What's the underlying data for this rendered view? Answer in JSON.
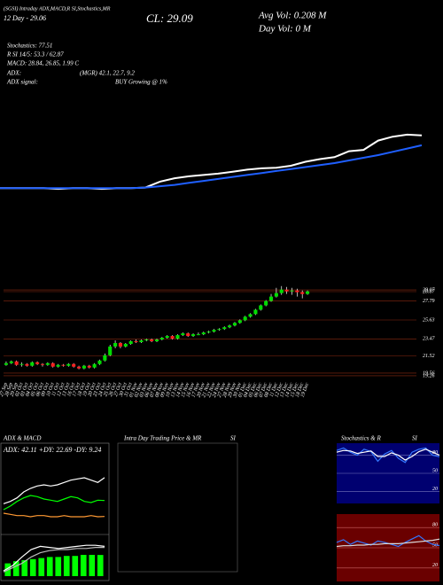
{
  "header": {
    "source": "(SGSI) Intraday ADX,MACD,R SI,Stochastics,MR",
    "day": "12 Day - 29.06",
    "close": "CL: 29.09",
    "avg_vol": "Avg Vol: 0.208  M",
    "day_vol": "Day Vol: 0  M",
    "stochastics": "Stochastics: 77.51",
    "rsi": "R SI 14/5: 53.3 / 62.87",
    "macd": "MACD: 28.84, 26.85, 1.99 C",
    "adx_label": "ADX:",
    "adx_values": "(MGR) 42.1, 22.7, 9.2",
    "adx_signal_label": "ADX  signal:",
    "adx_signal": "BUY Growing @ 1%"
  },
  "panels": {
    "adx_macd": "ADX  & MACD",
    "adx_readout": "ADX: 42.11 +DY: 22.69 -DY: 9.24",
    "intraday": "Intra Day Trading Price  & MR",
    "intraday_si": "SI",
    "stoch_rsi": "Stochastics & R",
    "stoch_rsi_si": "SI"
  },
  "chart_data": [
    {
      "type": "line",
      "ylim": [
        19.5,
        30.5
      ],
      "series": [
        {
          "color": "#ffffff",
          "values": [
            20.8,
            20.8,
            20.8,
            20.8,
            20.7,
            20.8,
            20.8,
            20.7,
            20.8,
            20.8,
            20.9,
            21.8,
            22.3,
            22.6,
            22.8,
            23.0,
            23.3,
            23.6,
            23.8,
            23.9,
            24.2,
            24.8,
            25.2,
            25.5,
            26.4,
            26.6,
            28.0,
            28.6,
            28.9,
            28.8
          ]
        },
        {
          "color": "#1f5fff",
          "values": [
            20.8,
            20.8,
            20.8,
            20.8,
            20.8,
            20.8,
            20.8,
            20.8,
            20.8,
            20.8,
            20.9,
            21.1,
            21.3,
            21.6,
            21.9,
            22.2,
            22.5,
            22.8,
            23.1,
            23.4,
            23.7,
            24.0,
            24.3,
            24.6,
            25.0,
            25.4,
            25.8,
            26.3,
            26.8,
            27.3
          ]
        }
      ]
    },
    {
      "type": "candlestick",
      "ylim": [
        18.85,
        29.78
      ],
      "yticks": [
        29.07,
        28.87,
        27.79,
        25.63,
        23.47,
        21.52,
        19.56,
        19.26
      ],
      "grid": true,
      "up_color": "#00dd00",
      "down_color": "#ff2020",
      "wick_color": "#ffffff",
      "grid_color": "#8b2a10",
      "categories": [
        "27 Sep",
        "28 Sep",
        "29 Sep",
        "02 Oct",
        "03 Oct",
        "04 Oct",
        "05 Oct",
        "06 Oct",
        "09 Oct",
        "10 Oct",
        "11 Oct",
        "12 Oct",
        "13 Oct",
        "16 Oct",
        "17 Oct",
        "18 Oct",
        "19 Oct",
        "20 Oct",
        "23 Oct",
        "24 Oct",
        "25 Oct",
        "26 Oct",
        "27 Oct",
        "30 Oct",
        "31 Oct",
        "01 Nov",
        "02 Nov",
        "03 Nov",
        "06 Nov",
        "07 Nov",
        "08 Nov",
        "09 Nov",
        "10 Nov",
        "13 Nov",
        "14 Nov",
        "15 Nov",
        "16 Nov",
        "17 Nov",
        "20 Nov",
        "21 Nov",
        "22 Nov",
        "24 Nov",
        "27 Nov",
        "28 Nov",
        "29 Nov",
        "30 Nov",
        "01 Dec",
        "04 Dec",
        "05 Dec",
        "06 Dec",
        "07 Dec",
        "08 Dec",
        "11 Dec",
        "12 Dec",
        "13 Dec",
        "14 Dec",
        "15 Dec",
        "18 Dec",
        "19 Dec"
      ],
      "open": [
        20.5,
        20.7,
        20.9,
        20.5,
        20.6,
        20.4,
        20.8,
        20.6,
        20.5,
        20.7,
        20.3,
        20.5,
        20.4,
        20.6,
        20.3,
        20.1,
        20.4,
        20.2,
        20.6,
        21.0,
        21.6,
        22.6,
        23.0,
        22.6,
        22.9,
        23.2,
        23.1,
        23.3,
        23.4,
        23.2,
        23.4,
        23.6,
        23.8,
        23.5,
        23.9,
        24.1,
        23.8,
        24.0,
        24.0,
        24.2,
        24.3,
        24.5,
        24.6,
        24.8,
        25.0,
        25.3,
        25.6,
        26.0,
        26.3,
        26.8,
        27.3,
        27.8,
        28.3,
        28.7,
        29.1,
        28.9,
        29.0,
        28.8,
        28.6
      ],
      "high": [
        20.9,
        21.0,
        21.0,
        20.8,
        20.7,
        20.9,
        20.9,
        20.7,
        20.8,
        20.8,
        20.6,
        20.6,
        20.7,
        20.7,
        20.4,
        20.5,
        20.5,
        20.7,
        21.1,
        21.8,
        22.8,
        23.3,
        23.1,
        23.0,
        23.3,
        23.4,
        23.4,
        23.5,
        23.5,
        23.5,
        23.7,
        23.9,
        23.9,
        24.0,
        24.2,
        24.2,
        24.1,
        24.2,
        24.3,
        24.4,
        24.6,
        24.7,
        24.9,
        25.1,
        25.4,
        25.7,
        26.1,
        26.4,
        26.9,
        27.4,
        27.9,
        28.6,
        29.3,
        29.5,
        29.4,
        29.3,
        29.2,
        29.0,
        29.0
      ],
      "low": [
        20.4,
        20.6,
        20.4,
        20.3,
        20.3,
        20.3,
        20.5,
        20.3,
        20.4,
        20.2,
        20.2,
        20.3,
        20.3,
        20.2,
        20.0,
        20.0,
        20.1,
        20.1,
        20.5,
        20.9,
        21.5,
        22.4,
        22.4,
        22.5,
        22.8,
        23.0,
        23.0,
        23.2,
        23.1,
        23.1,
        23.3,
        23.5,
        23.4,
        23.4,
        23.8,
        23.7,
        23.7,
        23.9,
        23.9,
        24.1,
        24.2,
        24.4,
        24.5,
        24.7,
        24.9,
        25.2,
        25.5,
        25.9,
        26.2,
        26.7,
        27.2,
        27.7,
        28.2,
        28.5,
        28.6,
        28.5,
        28.3,
        28.1,
        28.5
      ],
      "close": [
        20.7,
        20.9,
        20.5,
        20.6,
        20.4,
        20.8,
        20.6,
        20.5,
        20.7,
        20.3,
        20.5,
        20.4,
        20.6,
        20.3,
        20.1,
        20.4,
        20.2,
        20.6,
        21.0,
        21.6,
        22.6,
        23.0,
        22.6,
        22.9,
        23.2,
        23.1,
        23.3,
        23.4,
        23.2,
        23.4,
        23.6,
        23.8,
        23.5,
        23.9,
        24.1,
        23.8,
        24.0,
        24.0,
        24.2,
        24.3,
        24.5,
        24.6,
        24.8,
        25.0,
        25.3,
        25.6,
        26.0,
        26.3,
        26.8,
        27.3,
        27.8,
        28.3,
        28.7,
        29.1,
        28.9,
        29.0,
        28.8,
        28.6,
        28.9
      ]
    },
    {
      "type": "line",
      "ylim": [
        0,
        60
      ],
      "series": [
        {
          "color": "#ffffff",
          "values": [
            20,
            22,
            25,
            30,
            33,
            35,
            36,
            35,
            36,
            38,
            40,
            41,
            42,
            40,
            38,
            42.11
          ]
        },
        {
          "color": "#00ff00",
          "values": [
            15,
            18,
            22,
            25,
            27,
            26,
            24,
            23,
            22,
            24,
            26,
            25,
            22,
            21,
            23,
            22.69
          ]
        },
        {
          "color": "#ff9933",
          "values": [
            12,
            11,
            10,
            10,
            9,
            10,
            10,
            9,
            9,
            10,
            9,
            9,
            9,
            10,
            9,
            9.24
          ]
        }
      ]
    },
    {
      "type": "bar",
      "ylim": [
        0,
        3.5
      ],
      "color": "#00ff00",
      "values": [
        1.2,
        1.4,
        1.5,
        1.6,
        1.7,
        1.8,
        1.8,
        1.9,
        1.9,
        2.0,
        2.0,
        1.99
      ],
      "series": [
        {
          "color": "#ffffff",
          "values": [
            0.5,
            1.0,
            1.8,
            2.5,
            2.8,
            2.7,
            2.6,
            2.7,
            2.8,
            2.9,
            2.9,
            2.8
          ]
        },
        {
          "color": "#bbbbbb",
          "values": [
            0.4,
            0.8,
            1.2,
            1.8,
            2.2,
            2.4,
            2.5,
            2.5,
            2.6,
            2.6,
            2.7,
            2.7
          ]
        }
      ]
    },
    {
      "type": "line",
      "ylim": [
        0,
        100
      ],
      "yticks": [
        20,
        50,
        80
      ],
      "grid": true,
      "background": "#000070",
      "grid_color": "#7777bb",
      "series": [
        {
          "color": "#3377ff",
          "values": [
            88,
            92,
            85,
            80,
            90,
            86,
            70,
            82,
            88,
            75,
            68,
            85,
            90,
            92,
            80,
            77.51
          ]
        },
        {
          "color": "#ffffff",
          "values": [
            85,
            88,
            87,
            83,
            85,
            87,
            78,
            78,
            84,
            80,
            72,
            78,
            86,
            90,
            85,
            80
          ]
        }
      ]
    },
    {
      "type": "line",
      "ylim": [
        0,
        100
      ],
      "yticks": [
        20,
        50,
        80
      ],
      "grid": true,
      "background": "#6a0000",
      "grid_color": "#cc6666",
      "series": [
        {
          "color": "#3377ff",
          "values": [
            58,
            62,
            55,
            60,
            57,
            54,
            60,
            58,
            55,
            52,
            58,
            63,
            68,
            60,
            55,
            53.3
          ]
        },
        {
          "color": "#dddddd",
          "values": [
            52,
            53,
            53,
            54,
            54,
            55,
            55,
            56,
            56,
            56,
            57,
            58,
            59,
            60,
            61,
            62.87
          ]
        }
      ]
    }
  ]
}
